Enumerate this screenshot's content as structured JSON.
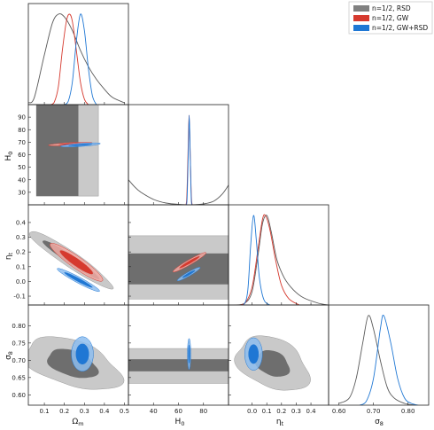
{
  "chart_data": {
    "type": "triangle_corner",
    "parameters": [
      {
        "key": "om",
        "label": "Ωm",
        "ticks": [
          0.1,
          0.2,
          0.3,
          0.4,
          0.5
        ],
        "range": [
          0.02,
          0.52
        ]
      },
      {
        "key": "h0",
        "label": "H0",
        "ticks": [
          40,
          60,
          80
        ],
        "range": [
          20,
          100
        ]
      },
      {
        "key": "eta",
        "label": "ηt",
        "ticks": [
          0.0,
          0.1,
          0.2,
          0.3,
          0.4
        ],
        "range": [
          -0.16,
          0.52
        ]
      },
      {
        "key": "s8",
        "label": "σ8",
        "ticks": [
          0.6,
          0.7,
          0.8
        ],
        "range": [
          0.57,
          0.86
        ]
      }
    ],
    "tick_labels": {
      "om": [
        "0.1",
        "0.2",
        "0.3",
        "0.4",
        "0.5"
      ],
      "h0": [
        "40",
        "60",
        "80"
      ],
      "eta": [
        "0.0",
        "0.1",
        "0.2",
        "0.3",
        "0.4"
      ],
      "h0_left": [
        "30",
        "40",
        "50",
        "60",
        "70",
        "80",
        "90"
      ],
      "eta_left": [
        "-0.1",
        "0.0",
        "0.1",
        "0.2",
        "0.3",
        "0.4"
      ],
      "s8_left": [
        "0.60",
        "0.65",
        "0.70",
        "0.75",
        "0.80"
      ]
    },
    "legend": {
      "placement": "top-right",
      "entries": [
        {
          "label": "n=1/2, RSD",
          "color": "#808080"
        },
        {
          "label": "n=1/2, GW",
          "color": "#d63a2f"
        },
        {
          "label": "n=1/2, GW+RSD",
          "color": "#1f77d4"
        }
      ]
    },
    "marginals": {
      "om": {
        "RSD": [
          [
            0.02,
            0.02
          ],
          [
            0.05,
            0.08
          ],
          [
            0.1,
            0.55
          ],
          [
            0.14,
            0.9
          ],
          [
            0.17,
            1.0
          ],
          [
            0.2,
            0.97
          ],
          [
            0.24,
            0.82
          ],
          [
            0.28,
            0.6
          ],
          [
            0.32,
            0.42
          ],
          [
            0.36,
            0.28
          ],
          [
            0.4,
            0.17
          ],
          [
            0.44,
            0.08
          ],
          [
            0.5,
            0.02
          ]
        ],
        "GW": [
          [
            0.13,
            0.0
          ],
          [
            0.15,
            0.03
          ],
          [
            0.17,
            0.2
          ],
          [
            0.19,
            0.6
          ],
          [
            0.21,
            0.92
          ],
          [
            0.225,
            1.0
          ],
          [
            0.24,
            0.92
          ],
          [
            0.26,
            0.6
          ],
          [
            0.28,
            0.25
          ],
          [
            0.3,
            0.06
          ],
          [
            0.32,
            0.0
          ]
        ],
        "GWRSD": [
          [
            0.2,
            0.0
          ],
          [
            0.22,
            0.04
          ],
          [
            0.24,
            0.25
          ],
          [
            0.26,
            0.7
          ],
          [
            0.28,
            1.0
          ],
          [
            0.3,
            0.82
          ],
          [
            0.32,
            0.4
          ],
          [
            0.34,
            0.1
          ],
          [
            0.36,
            0.0
          ]
        ]
      },
      "h0": {
        "RSD": [
          [
            20,
            0.28
          ],
          [
            25,
            0.2
          ],
          [
            30,
            0.14
          ],
          [
            40,
            0.06
          ],
          [
            50,
            0.02
          ],
          [
            60,
            0.005
          ],
          [
            70,
            0.0
          ],
          [
            80,
            0.01
          ],
          [
            88,
            0.04
          ],
          [
            95,
            0.12
          ],
          [
            100,
            0.22
          ]
        ],
        "GW": [
          [
            65,
            0.0
          ],
          [
            66.5,
            0.05
          ],
          [
            67.5,
            0.5
          ],
          [
            68.5,
            1.0
          ],
          [
            69.5,
            0.5
          ],
          [
            70.5,
            0.05
          ],
          [
            72,
            0.0
          ]
        ],
        "GWRSD": [
          [
            65.5,
            0.0
          ],
          [
            66.8,
            0.05
          ],
          [
            67.8,
            0.55
          ],
          [
            68.6,
            1.0
          ],
          [
            69.4,
            0.55
          ],
          [
            70.3,
            0.05
          ],
          [
            71.5,
            0.0
          ]
        ]
      },
      "eta": {
        "RSD": [
          [
            -0.12,
            0.0
          ],
          [
            -0.05,
            0.02
          ],
          [
            0.0,
            0.15
          ],
          [
            0.04,
            0.55
          ],
          [
            0.07,
            0.9
          ],
          [
            0.1,
            1.0
          ],
          [
            0.13,
            0.82
          ],
          [
            0.17,
            0.5
          ],
          [
            0.22,
            0.3
          ],
          [
            0.28,
            0.17
          ],
          [
            0.35,
            0.08
          ],
          [
            0.45,
            0.02
          ],
          [
            0.52,
            0.0
          ]
        ],
        "GW": [
          [
            -0.12,
            0.0
          ],
          [
            -0.05,
            0.02
          ],
          [
            0.0,
            0.2
          ],
          [
            0.04,
            0.62
          ],
          [
            0.07,
            0.95
          ],
          [
            0.09,
            1.0
          ],
          [
            0.12,
            0.85
          ],
          [
            0.16,
            0.5
          ],
          [
            0.2,
            0.22
          ],
          [
            0.25,
            0.07
          ],
          [
            0.32,
            0.0
          ]
        ],
        "GWRSD": [
          [
            -0.12,
            0.0
          ],
          [
            -0.06,
            0.0
          ],
          [
            -0.03,
            0.15
          ],
          [
            -0.01,
            0.65
          ],
          [
            0.01,
            1.0
          ],
          [
            0.03,
            0.7
          ],
          [
            0.05,
            0.3
          ],
          [
            0.08,
            0.06
          ],
          [
            0.12,
            0.0
          ]
        ]
      },
      "s8": {
        "RSD": [
          [
            0.6,
            0.02
          ],
          [
            0.63,
            0.08
          ],
          [
            0.65,
            0.3
          ],
          [
            0.67,
            0.72
          ],
          [
            0.685,
            1.0
          ],
          [
            0.7,
            0.85
          ],
          [
            0.72,
            0.5
          ],
          [
            0.74,
            0.2
          ],
          [
            0.76,
            0.08
          ],
          [
            0.79,
            0.02
          ],
          [
            0.82,
            0.0
          ]
        ],
        "GWRSD": [
          [
            0.66,
            0.0
          ],
          [
            0.68,
            0.05
          ],
          [
            0.7,
            0.3
          ],
          [
            0.72,
            0.85
          ],
          [
            0.73,
            1.0
          ],
          [
            0.75,
            0.7
          ],
          [
            0.77,
            0.3
          ],
          [
            0.79,
            0.08
          ],
          [
            0.81,
            0.02
          ],
          [
            0.83,
            0.0
          ]
        ]
      }
    },
    "contours": [
      {
        "x": "om",
        "y": "h0",
        "series": "RSD",
        "region": "rect",
        "outer": [
          [
            0.06,
            0.37
          ],
          [
            27,
            100
          ]
        ],
        "inner": [
          [
            0.06,
            0.27
          ],
          [
            27,
            100
          ]
        ]
      },
      {
        "x": "om",
        "y": "h0",
        "series": "GW",
        "region": "ellipse",
        "center": [
          0.23,
          68.5
        ],
        "radius": [
          0.11,
          1.1
        ],
        "inner_radius": [
          0.06,
          0.6
        ],
        "tilt_deg": 3
      },
      {
        "x": "om",
        "y": "h0",
        "series": "GWRSD",
        "region": "ellipse",
        "center": [
          0.28,
          67.8
        ],
        "radius": [
          0.1,
          1.2
        ],
        "inner_radius": [
          0.06,
          0.7
        ],
        "tilt_deg": 4
      },
      {
        "x": "h0",
        "y": "eta",
        "series": "RSD",
        "region": "rect",
        "outer": [
          [
            20,
            100
          ],
          [
            -0.12,
            0.31
          ]
        ],
        "inner": [
          [
            20,
            100
          ],
          [
            -0.02,
            0.19
          ]
        ]
      },
      {
        "x": "h0",
        "y": "eta",
        "series": "GW",
        "region": "ellipse",
        "center": [
          68.8,
          0.13
        ],
        "radius": [
          2.0,
          0.13
        ],
        "inner_radius": [
          1.1,
          0.08
        ],
        "tilt_deg": -60
      },
      {
        "x": "h0",
        "y": "eta",
        "series": "GWRSD",
        "region": "ellipse",
        "center": [
          68.2,
          0.05
        ],
        "radius": [
          1.6,
          0.09
        ],
        "inner_radius": [
          0.9,
          0.05
        ],
        "tilt_deg": -60
      },
      {
        "x": "h0",
        "y": "s8",
        "series": "RSD",
        "region": "rect",
        "outer": [
          [
            20,
            100
          ],
          [
            0.633,
            0.734
          ]
        ],
        "inner": [
          [
            20,
            100
          ],
          [
            0.668,
            0.703
          ]
        ]
      },
      {
        "x": "h0",
        "y": "s8",
        "series": "GWRSD",
        "region": "ellipse",
        "center": [
          68.5,
          0.718
        ],
        "radius": [
          1.3,
          0.045
        ],
        "inner_radius": [
          0.8,
          0.027
        ],
        "tilt_deg": 0
      },
      {
        "x": "om",
        "y": "eta",
        "series": "RSD",
        "region": "band",
        "center": [
          0.23,
          0.15
        ],
        "radius": [
          0.25,
          0.052
        ],
        "inner_radius": [
          0.17,
          0.028
        ],
        "tilt_deg": -34
      },
      {
        "x": "om",
        "y": "eta",
        "series": "GW",
        "region": "ellipse",
        "center": [
          0.26,
          0.13
        ],
        "radius": [
          0.16,
          0.04
        ],
        "inner_radius": [
          0.1,
          0.025
        ],
        "tilt_deg": -35
      },
      {
        "x": "om",
        "y": "eta",
        "series": "GWRSD",
        "region": "ellipse",
        "center": [
          0.27,
          0.01
        ],
        "radius": [
          0.12,
          0.02
        ],
        "inner_radius": [
          0.08,
          0.012
        ],
        "tilt_deg": -28
      },
      {
        "x": "om",
        "y": "s8",
        "series": "RSD",
        "region": "blob",
        "center": [
          0.24,
          0.69
        ],
        "radius": [
          0.25,
          0.065
        ],
        "inner_radius": [
          0.13,
          0.037
        ],
        "tilt_deg": -18
      },
      {
        "x": "om",
        "y": "s8",
        "series": "GWRSD",
        "region": "ellipse",
        "center": [
          0.29,
          0.718
        ],
        "radius": [
          0.055,
          0.05
        ],
        "inner_radius": [
          0.033,
          0.03
        ],
        "tilt_deg": 0
      },
      {
        "x": "eta",
        "y": "s8",
        "series": "RSD",
        "region": "blob",
        "center": [
          0.14,
          0.69
        ],
        "radius": [
          0.26,
          0.07
        ],
        "inner_radius": [
          0.12,
          0.035
        ],
        "tilt_deg": -25
      },
      {
        "x": "eta",
        "y": "s8",
        "series": "GWRSD",
        "region": "ellipse",
        "center": [
          0.01,
          0.718
        ],
        "radius": [
          0.06,
          0.047
        ],
        "inner_radius": [
          0.035,
          0.028
        ],
        "tilt_deg": 0
      }
    ],
    "colors": {
      "RSD": {
        "inner": "#6e6e6e",
        "outer": "#c9c9c9",
        "line": "#5a5a5a"
      },
      "GW": {
        "inner": "#d63a2f",
        "outer": "#f2aaa3",
        "line": "#d63a2f"
      },
      "GWRSD": {
        "inner": "#1f77d4",
        "outer": "#8dbdef",
        "line": "#1f77d4"
      }
    }
  }
}
